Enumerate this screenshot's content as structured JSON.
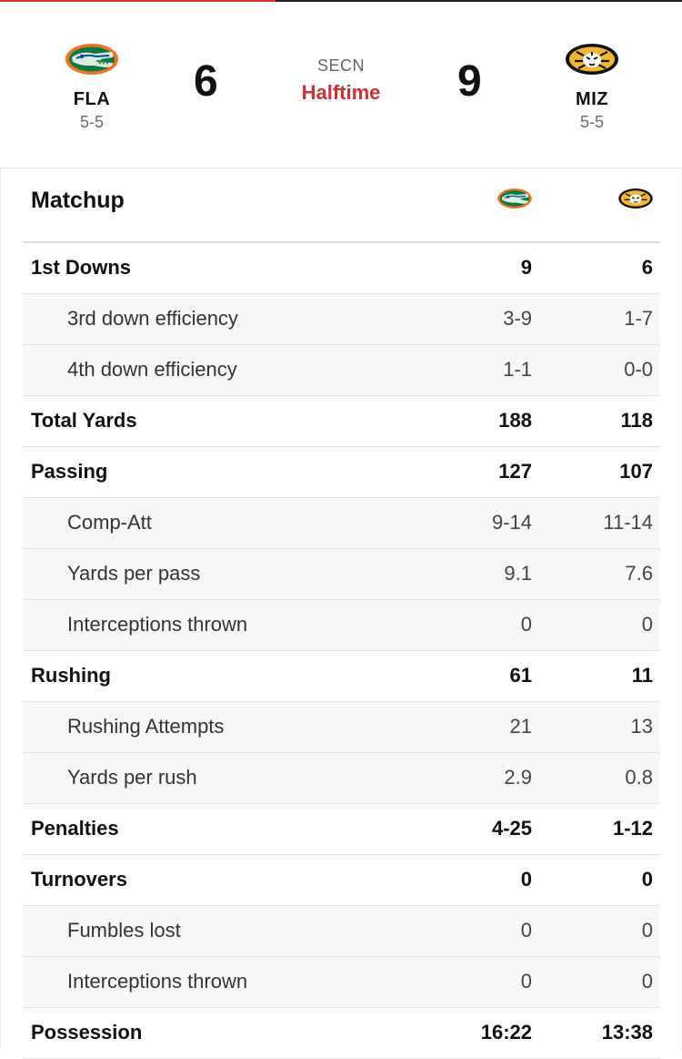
{
  "header": {
    "away": {
      "abbr": "FLA",
      "record": "5-5",
      "score": "6",
      "logo_icon": "gator-logo-icon",
      "color": "#0a7a3f"
    },
    "home": {
      "abbr": "MIZ",
      "record": "5-5",
      "score": "9",
      "logo_icon": "tiger-logo-icon",
      "color": "#f1b82d"
    },
    "network": "SECN",
    "status": "Halftime",
    "status_color": "#d0312d"
  },
  "matchup": {
    "title": "Matchup",
    "rows": [
      {
        "label": "1st Downs",
        "away": "9",
        "home": "6",
        "sub": false
      },
      {
        "label": "3rd down efficiency",
        "away": "3-9",
        "home": "1-7",
        "sub": true
      },
      {
        "label": "4th down efficiency",
        "away": "1-1",
        "home": "0-0",
        "sub": true
      },
      {
        "label": "Total Yards",
        "away": "188",
        "home": "118",
        "sub": false
      },
      {
        "label": "Passing",
        "away": "127",
        "home": "107",
        "sub": false
      },
      {
        "label": "Comp-Att",
        "away": "9-14",
        "home": "11-14",
        "sub": true
      },
      {
        "label": "Yards per pass",
        "away": "9.1",
        "home": "7.6",
        "sub": true
      },
      {
        "label": "Interceptions thrown",
        "away": "0",
        "home": "0",
        "sub": true
      },
      {
        "label": "Rushing",
        "away": "61",
        "home": "11",
        "sub": false
      },
      {
        "label": "Rushing Attempts",
        "away": "21",
        "home": "13",
        "sub": true
      },
      {
        "label": "Yards per rush",
        "away": "2.9",
        "home": "0.8",
        "sub": true
      },
      {
        "label": "Penalties",
        "away": "4-25",
        "home": "1-12",
        "sub": false
      },
      {
        "label": "Turnovers",
        "away": "0",
        "home": "0",
        "sub": false
      },
      {
        "label": "Fumbles lost",
        "away": "0",
        "home": "0",
        "sub": true
      },
      {
        "label": "Interceptions thrown",
        "away": "0",
        "home": "0",
        "sub": true
      },
      {
        "label": "Possession",
        "away": "16:22",
        "home": "13:38",
        "sub": false
      }
    ]
  }
}
